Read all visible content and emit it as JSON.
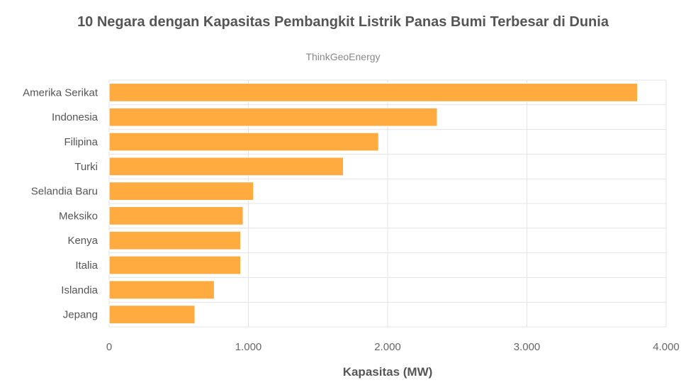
{
  "chart_data": {
    "type": "bar",
    "orientation": "horizontal",
    "title": "10 Negara dengan Kapasitas Pembangkit Listrik Panas Bumi Terbesar di Dunia",
    "subtitle": "ThinkGeoEnergy",
    "xlabel": "Kapasitas (MW)",
    "ylabel": "",
    "categories": [
      "Amerika Serikat",
      "Indonesia",
      "Filipina",
      "Turki",
      "Selandia Baru",
      "Meksiko",
      "Kenya",
      "Italia",
      "Islandia",
      "Jepang"
    ],
    "values": [
      3794,
      2356,
      1935,
      1682,
      1037,
      962,
      944,
      944,
      755,
      616
    ],
    "xlim": [
      0,
      4000
    ],
    "ticks": [
      {
        "value": 0,
        "label": "0"
      },
      {
        "value": 1000,
        "label": "1.000"
      },
      {
        "value": 2000,
        "label": "2.000"
      },
      {
        "value": 3000,
        "label": "3.000"
      },
      {
        "value": 4000,
        "label": "4.000"
      }
    ],
    "grid": true,
    "colors": {
      "bar": "#ffab40",
      "grid": "#e3e3e3"
    }
  }
}
